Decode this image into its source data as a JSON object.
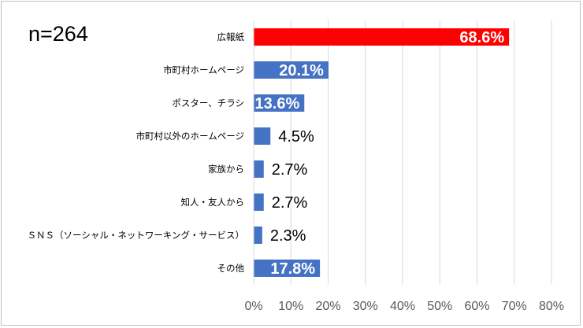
{
  "chart_data": {
    "type": "bar",
    "orientation": "horizontal",
    "annotation": "n=264",
    "categories": [
      "広報紙",
      "市町村ホームページ",
      "ポスター、チラシ",
      "市町村以外のホームページ",
      "家族から",
      "知人・友人から",
      "ＳＮＳ（ソーシャル・ネットワーキング・サービス）",
      "その他"
    ],
    "values": [
      68.6,
      20.1,
      13.6,
      4.5,
      2.7,
      2.7,
      2.3,
      17.8
    ],
    "value_labels": [
      "68.6%",
      "20.1%",
      "13.6%",
      "4.5%",
      "2.7%",
      "2.7%",
      "2.3%",
      "17.8%"
    ],
    "xlim": [
      0,
      80
    ],
    "xticks": [
      "0%",
      "10%",
      "20%",
      "30%",
      "40%",
      "50%",
      "60%",
      "70%",
      "80%"
    ],
    "grid": "vertical",
    "colors": {
      "highlight": "#ff0000",
      "bar": "#4472c4",
      "grid": "#d9d9d9"
    }
  }
}
